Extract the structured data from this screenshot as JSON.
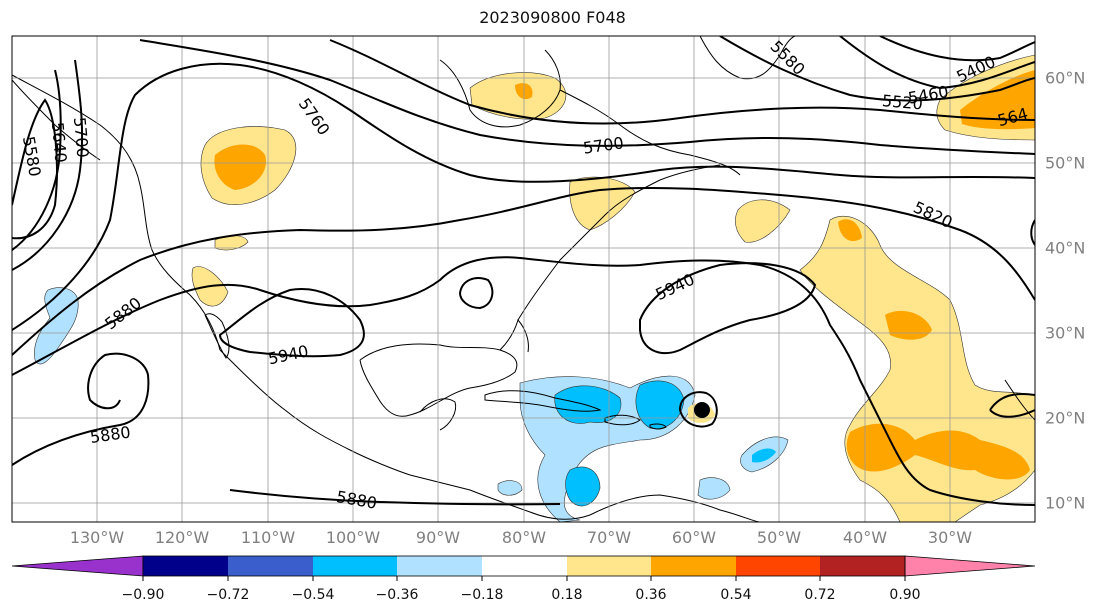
{
  "title": "2023090800 F048",
  "map": {
    "lon_labels": [
      "130°W",
      "120°W",
      "110°W",
      "100°W",
      "90°W",
      "80°W",
      "70°W",
      "60°W",
      "50°W",
      "40°W",
      "30°W"
    ],
    "lat_labels": [
      "60°N",
      "50°N",
      "40°N",
      "30°N",
      "20°N",
      "10°N"
    ],
    "contour_labels": [
      "5580",
      "5640",
      "5700",
      "5760",
      "5700",
      "5580",
      "5520",
      "5460",
      "5400",
      "564",
      "5820",
      "5880",
      "5940",
      "5940",
      "5880",
      "5880"
    ]
  },
  "colorbar": {
    "tick_labels": [
      "−0.90",
      "−0.72",
      "−0.54",
      "−0.36",
      "−0.18",
      "0.18",
      "0.36",
      "0.54",
      "0.72",
      "0.90"
    ],
    "colors": [
      "#9932cc",
      "#00008b",
      "#3a5fcd",
      "#00bfff",
      "#b0e2ff",
      "#ffffff",
      "#ffe68c",
      "#ffa500",
      "#ff4500",
      "#b22222",
      "#ff82ab"
    ]
  }
}
